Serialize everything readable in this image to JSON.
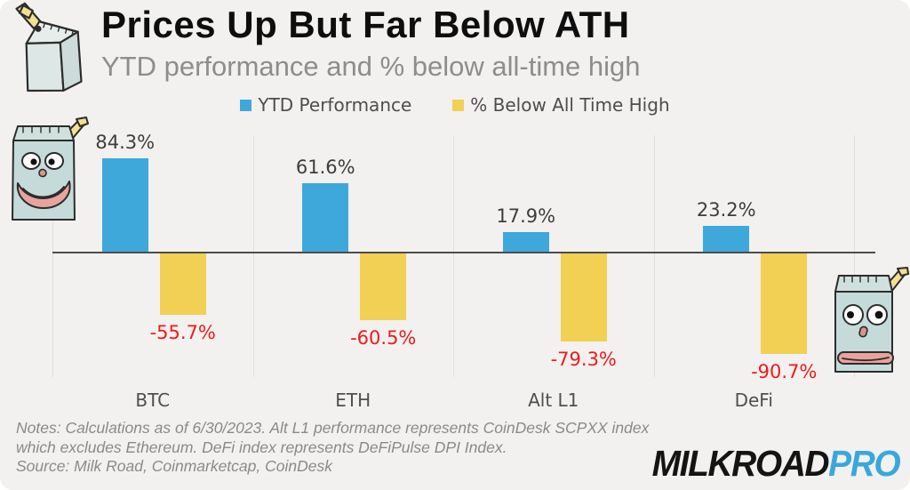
{
  "header": {
    "title": "Prices Up But Far Below ATH",
    "subtitle": "YTD performance and % below all-time high"
  },
  "chart_data": {
    "type": "bar",
    "categories": [
      "BTC",
      "ETH",
      "Alt L1",
      "DeFi"
    ],
    "series": [
      {
        "name": "YTD Performance",
        "color": "#3fa8da",
        "label_color": "#3d3d3d",
        "values": [
          84.3,
          61.6,
          17.9,
          23.2
        ]
      },
      {
        "name": "% Below All Time High",
        "color": "#f1d053",
        "label_color": "#ee1b1b",
        "values": [
          -55.7,
          -60.5,
          -79.3,
          -90.7
        ]
      }
    ],
    "value_suffix": "%",
    "ylim": [
      -100,
      100
    ],
    "grid": "vertical category separators, dark zero baseline",
    "legend_position": "top center",
    "background_color": "#f2f1ef"
  },
  "footer": {
    "notes": "Notes: Calculations as of 6/30/2023. Alt L1 performance represents CoinDesk SCPXX index which excludes Ethereum. DeFi index represents DeFiPulse DPI Index.",
    "source": "Source: Milk Road, Coinmarketcap, CoinDesk",
    "logo": {
      "part1": "MILKROAD",
      "part2": "PRO",
      "part2_color": "#3aa7dc"
    }
  },
  "illustrations": {
    "top_left": "milk-carton-plain-with-straw",
    "mid_left": "milk-carton-happy-face",
    "mid_right": "milk-carton-shocked-face"
  }
}
